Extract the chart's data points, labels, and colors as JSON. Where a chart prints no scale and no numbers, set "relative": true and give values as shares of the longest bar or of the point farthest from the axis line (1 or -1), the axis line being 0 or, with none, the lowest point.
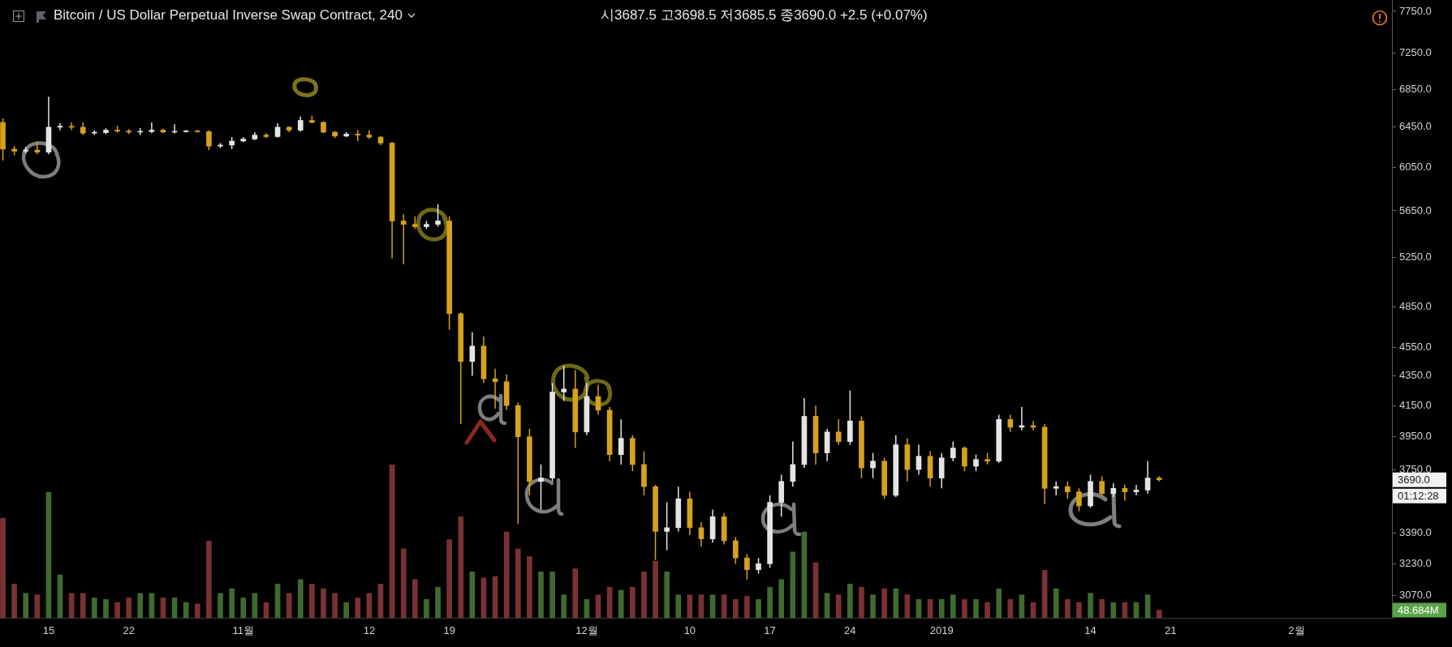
{
  "chart_data": [
    {
      "type": "candlestick",
      "title": "Bitcoin / US Dollar Perpetual Inverse Swap Contract, 240",
      "subtitle": "시3687.5 고3698.5 저3685.5 종3690.0 +2.5 (+0.07%)",
      "x": [
        "2018-10-11",
        "2018-10-12",
        "2018-10-13",
        "2018-10-14",
        "2018-10-15",
        "2018-10-16",
        "2018-10-17",
        "2018-10-18",
        "2018-10-19",
        "2018-10-20",
        "2018-10-21",
        "2018-10-22",
        "2018-10-23",
        "2018-10-24",
        "2018-10-25",
        "2018-10-26",
        "2018-10-27",
        "2018-10-28",
        "2018-10-29",
        "2018-10-30",
        "2018-10-31",
        "2018-11-01",
        "2018-11-02",
        "2018-11-03",
        "2018-11-04",
        "2018-11-05",
        "2018-11-06",
        "2018-11-07",
        "2018-11-08",
        "2018-11-09",
        "2018-11-10",
        "2018-11-11",
        "2018-11-12",
        "2018-11-13",
        "2018-11-14",
        "2018-11-15",
        "2018-11-16",
        "2018-11-17",
        "2018-11-18",
        "2018-11-19",
        "2018-11-20",
        "2018-11-21",
        "2018-11-22",
        "2018-11-23",
        "2018-11-24",
        "2018-11-25",
        "2018-11-26",
        "2018-11-27",
        "2018-11-28",
        "2018-11-29",
        "2018-11-30",
        "2018-12-01",
        "2018-12-02",
        "2018-12-03",
        "2018-12-04",
        "2018-12-05",
        "2018-12-06",
        "2018-12-07",
        "2018-12-08",
        "2018-12-09",
        "2018-12-10",
        "2018-12-11",
        "2018-12-12",
        "2018-12-13",
        "2018-12-14",
        "2018-12-15",
        "2018-12-16",
        "2018-12-17",
        "2018-12-18",
        "2018-12-19",
        "2018-12-20",
        "2018-12-21",
        "2018-12-22",
        "2018-12-23",
        "2018-12-24",
        "2018-12-25",
        "2018-12-26",
        "2018-12-27",
        "2018-12-28",
        "2018-12-29",
        "2018-12-30",
        "2018-12-31",
        "2019-01-01",
        "2019-01-02",
        "2019-01-03",
        "2019-01-04",
        "2019-01-05",
        "2019-01-06",
        "2019-01-07",
        "2019-01-08",
        "2019-01-09",
        "2019-01-10",
        "2019-01-11",
        "2019-01-12",
        "2019-01-13",
        "2019-01-14",
        "2019-01-15",
        "2019-01-16",
        "2019-01-17",
        "2019-01-18",
        "2019-01-19",
        "2019-01-20"
      ],
      "ohlc": [
        [
          6500,
          6540,
          6120,
          6230
        ],
        [
          6230,
          6260,
          6170,
          6210
        ],
        [
          6210,
          6250,
          6190,
          6220
        ],
        [
          6220,
          6310,
          6180,
          6200
        ],
        [
          6200,
          6770,
          6180,
          6450
        ],
        [
          6450,
          6490,
          6420,
          6460
        ],
        [
          6460,
          6500,
          6420,
          6450
        ],
        [
          6450,
          6500,
          6370,
          6390
        ],
        [
          6390,
          6420,
          6370,
          6395
        ],
        [
          6395,
          6440,
          6380,
          6420
        ],
        [
          6420,
          6465,
          6395,
          6410
        ],
        [
          6410,
          6430,
          6380,
          6400
        ],
        [
          6400,
          6440,
          6370,
          6405
        ],
        [
          6405,
          6500,
          6390,
          6420
        ],
        [
          6420,
          6435,
          6390,
          6400
        ],
        [
          6400,
          6480,
          6385,
          6405
        ],
        [
          6405,
          6420,
          6395,
          6410
        ],
        [
          6410,
          6420,
          6395,
          6405
        ],
        [
          6405,
          6420,
          6220,
          6260
        ],
        [
          6260,
          6290,
          6240,
          6270
        ],
        [
          6270,
          6350,
          6230,
          6310
        ],
        [
          6310,
          6350,
          6300,
          6330
        ],
        [
          6330,
          6400,
          6320,
          6370
        ],
        [
          6370,
          6390,
          6340,
          6355
        ],
        [
          6355,
          6490,
          6345,
          6450
        ],
        [
          6450,
          6460,
          6400,
          6420
        ],
        [
          6420,
          6560,
          6405,
          6520
        ],
        [
          6520,
          6570,
          6490,
          6500
        ],
        [
          6500,
          6510,
          6390,
          6400
        ],
        [
          6400,
          6410,
          6340,
          6360
        ],
        [
          6360,
          6400,
          6350,
          6380
        ],
        [
          6380,
          6420,
          6310,
          6370
        ],
        [
          6370,
          6420,
          6330,
          6350
        ],
        [
          6350,
          6360,
          6270,
          6290
        ],
        [
          6290,
          6300,
          5240,
          5560
        ],
        [
          5560,
          5620,
          5190,
          5530
        ],
        [
          5530,
          5600,
          5490,
          5510
        ],
        [
          5510,
          5560,
          5490,
          5530
        ],
        [
          5530,
          5710,
          5510,
          5560
        ],
        [
          5560,
          5600,
          4680,
          4800
        ],
        [
          4800,
          4810,
          4030,
          4450
        ],
        [
          4450,
          4660,
          4350,
          4560
        ],
        [
          4560,
          4630,
          4300,
          4330
        ],
        [
          4330,
          4400,
          4130,
          4310
        ],
        [
          4310,
          4360,
          4120,
          4150
        ],
        [
          4150,
          4170,
          3440,
          3950
        ],
        [
          3950,
          4000,
          3600,
          3680
        ],
        [
          3680,
          3780,
          3520,
          3700
        ],
        [
          3700,
          4300,
          3680,
          4240
        ],
        [
          4240,
          4420,
          4180,
          4260
        ],
        [
          4260,
          4390,
          3880,
          3980
        ],
        [
          3980,
          4300,
          3960,
          4210
        ],
        [
          4210,
          4290,
          4090,
          4120
        ],
        [
          4120,
          4140,
          3800,
          3840
        ],
        [
          3840,
          4060,
          3780,
          3940
        ],
        [
          3940,
          3960,
          3740,
          3780
        ],
        [
          3780,
          3860,
          3600,
          3650
        ],
        [
          3650,
          3660,
          3250,
          3400
        ],
        [
          3400,
          3560,
          3300,
          3420
        ],
        [
          3420,
          3650,
          3400,
          3580
        ],
        [
          3580,
          3620,
          3380,
          3420
        ],
        [
          3420,
          3450,
          3320,
          3360
        ],
        [
          3360,
          3520,
          3340,
          3480
        ],
        [
          3480,
          3500,
          3330,
          3350
        ],
        [
          3350,
          3370,
          3230,
          3260
        ],
        [
          3260,
          3280,
          3150,
          3200
        ],
        [
          3200,
          3260,
          3180,
          3230
        ],
        [
          3230,
          3600,
          3210,
          3560
        ],
        [
          3560,
          3720,
          3480,
          3680
        ],
        [
          3680,
          3920,
          3650,
          3780
        ],
        [
          3780,
          4200,
          3760,
          4080
        ],
        [
          4080,
          4150,
          3780,
          3850
        ],
        [
          3850,
          4000,
          3800,
          3980
        ],
        [
          3980,
          4060,
          3900,
          3920
        ],
        [
          3920,
          4250,
          3900,
          4050
        ],
        [
          4050,
          4080,
          3700,
          3760
        ],
        [
          3760,
          3850,
          3700,
          3800
        ],
        [
          3800,
          3820,
          3580,
          3600
        ],
        [
          3600,
          3960,
          3590,
          3900
        ],
        [
          3900,
          3940,
          3680,
          3750
        ],
        [
          3750,
          3900,
          3720,
          3830
        ],
        [
          3830,
          3860,
          3650,
          3700
        ],
        [
          3700,
          3850,
          3640,
          3820
        ],
        [
          3820,
          3920,
          3800,
          3880
        ],
        [
          3880,
          3890,
          3740,
          3770
        ],
        [
          3770,
          3840,
          3740,
          3810
        ],
        [
          3810,
          3850,
          3780,
          3800
        ],
        [
          3800,
          4090,
          3790,
          4060
        ],
        [
          4060,
          4090,
          3980,
          4010
        ],
        [
          4010,
          4140,
          3990,
          4020
        ],
        [
          4020,
          4050,
          3990,
          4010
        ],
        [
          4010,
          4030,
          3550,
          3640
        ],
        [
          3640,
          3680,
          3600,
          3650
        ],
        [
          3650,
          3680,
          3580,
          3620
        ],
        [
          3620,
          3640,
          3510,
          3540
        ],
        [
          3540,
          3720,
          3530,
          3680
        ],
        [
          3680,
          3710,
          3600,
          3610
        ],
        [
          3610,
          3670,
          3590,
          3640
        ],
        [
          3640,
          3660,
          3570,
          3620
        ],
        [
          3620,
          3660,
          3600,
          3630
        ],
        [
          3630,
          3800,
          3610,
          3700
        ],
        [
          3700,
          3710,
          3680,
          3690
        ]
      ],
      "colors": [
        "#d6a11e",
        "#d6a11e",
        "#e4e4e4",
        "#d6a11e",
        "#e4e4e4",
        "#e4e4e4",
        "#d6a11e",
        "#d6a11e",
        "#e4e4e4",
        "#e4e4e4",
        "#d6a11e",
        "#d6a11e",
        "#e4e4e4",
        "#e4e4e4",
        "#d6a11e",
        "#e4e4e4",
        "#e4e4e4",
        "#d6a11e",
        "#d6a11e",
        "#e4e4e4",
        "#e4e4e4",
        "#e4e4e4",
        "#e4e4e4",
        "#d6a11e",
        "#e4e4e4",
        "#d6a11e",
        "#e4e4e4",
        "#d6a11e",
        "#d6a11e",
        "#d6a11e",
        "#e4e4e4",
        "#d6a11e",
        "#d6a11e",
        "#d6a11e",
        "#d6a11e",
        "#d6a11e",
        "#d6a11e",
        "#e4e4e4",
        "#e4e4e4",
        "#d6a11e",
        "#d6a11e",
        "#e4e4e4",
        "#d6a11e",
        "#d6a11e",
        "#d6a11e",
        "#d6a11e",
        "#d6a11e",
        "#e4e4e4",
        "#e4e4e4",
        "#e4e4e4",
        "#d6a11e",
        "#e4e4e4",
        "#d6a11e",
        "#d6a11e",
        "#e4e4e4",
        "#d6a11e",
        "#d6a11e",
        "#d6a11e",
        "#e4e4e4",
        "#e4e4e4",
        "#d6a11e",
        "#d6a11e",
        "#e4e4e4",
        "#d6a11e",
        "#d6a11e",
        "#d6a11e",
        "#e4e4e4",
        "#e4e4e4",
        "#e4e4e4",
        "#e4e4e4",
        "#e4e4e4",
        "#d6a11e",
        "#e4e4e4",
        "#d6a11e",
        "#e4e4e4",
        "#d6a11e",
        "#e4e4e4",
        "#d6a11e",
        "#e4e4e4",
        "#d6a11e",
        "#e4e4e4",
        "#d6a11e",
        "#e4e4e4",
        "#e4e4e4",
        "#d6a11e",
        "#e4e4e4",
        "#d6a11e",
        "#e4e4e4",
        "#d6a11e",
        "#e4e4e4",
        "#d6a11e",
        "#d6a11e",
        "#e4e4e4",
        "#d6a11e",
        "#d6a11e",
        "#e4e4e4",
        "#d6a11e",
        "#e4e4e4",
        "#d6a11e",
        "#e4e4e4",
        "#e4e4e4",
        "#d6a11e"
      ],
      "xlim": [
        "2018-10-10T18:00",
        "2019-02-09T08:00"
      ],
      "xticks": [
        {
          "value": "2018-10-15",
          "label": "15"
        },
        {
          "value": "2018-10-22",
          "label": "22"
        },
        {
          "value": "2018-11-01",
          "label": "11월"
        },
        {
          "value": "2018-11-12",
          "label": "12"
        },
        {
          "value": "2018-11-19",
          "label": "19"
        },
        {
          "value": "2018-12-01",
          "label": "12월"
        },
        {
          "value": "2018-12-10",
          "label": "10"
        },
        {
          "value": "2018-12-17",
          "label": "17"
        },
        {
          "value": "2018-12-24",
          "label": "24"
        },
        {
          "value": "2019-01-01",
          "label": "2019"
        },
        {
          "value": "2019-01-14",
          "label": "14"
        },
        {
          "value": "2019-01-21",
          "label": "21"
        },
        {
          "value": "2019-02-01",
          "label": "2월"
        }
      ],
      "ylim": [
        2965,
        7890
      ],
      "yticks": [
        {
          "value": 7750,
          "label": "7750.0"
        },
        {
          "value": 7250,
          "label": "7250.0"
        },
        {
          "value": 6850,
          "label": "6850.0"
        },
        {
          "value": 6450,
          "label": "6450.0"
        },
        {
          "value": 6050,
          "label": "6050.0"
        },
        {
          "value": 5650,
          "label": "5650.0"
        },
        {
          "value": 5250,
          "label": "5250.0"
        },
        {
          "value": 4850,
          "label": "4850.0"
        },
        {
          "value": 4550,
          "label": "4550.0"
        },
        {
          "value": 4350,
          "label": "4350.0"
        },
        {
          "value": 4150,
          "label": "4150.0"
        },
        {
          "value": 3950,
          "label": "3950.0"
        },
        {
          "value": 3750,
          "label": "3750.0"
        },
        {
          "value": 3390,
          "label": "3390.0"
        },
        {
          "value": 3230,
          "label": "3230.0"
        },
        {
          "value": 3070,
          "label": "3070.0"
        }
      ],
      "log": true,
      "annotations": [
        "3690.0",
        "01:12:28"
      ]
    },
    {
      "type": "bar",
      "x": [
        "2018-10-11",
        "2018-10-12",
        "2018-10-13",
        "2018-10-14",
        "2018-10-15",
        "2018-10-16",
        "2018-10-17",
        "2018-10-18",
        "2018-10-19",
        "2018-10-20",
        "2018-10-21",
        "2018-10-22",
        "2018-10-23",
        "2018-10-24",
        "2018-10-25",
        "2018-10-26",
        "2018-10-27",
        "2018-10-28",
        "2018-10-29",
        "2018-10-30",
        "2018-10-31",
        "2018-11-01",
        "2018-11-02",
        "2018-11-03",
        "2018-11-04",
        "2018-11-05",
        "2018-11-06",
        "2018-11-07",
        "2018-11-08",
        "2018-11-09",
        "2018-11-10",
        "2018-11-11",
        "2018-11-12",
        "2018-11-13",
        "2018-11-14",
        "2018-11-15",
        "2018-11-16",
        "2018-11-17",
        "2018-11-18",
        "2018-11-19",
        "2018-11-20",
        "2018-11-21",
        "2018-11-22",
        "2018-11-23",
        "2018-11-24",
        "2018-11-25",
        "2018-11-26",
        "2018-11-27",
        "2018-11-28",
        "2018-11-29",
        "2018-11-30",
        "2018-12-01",
        "2018-12-02",
        "2018-12-03",
        "2018-12-04",
        "2018-12-05",
        "2018-12-06",
        "2018-12-07",
        "2018-12-08",
        "2018-12-09",
        "2018-12-10",
        "2018-12-11",
        "2018-12-12",
        "2018-12-13",
        "2018-12-14",
        "2018-12-15",
        "2018-12-16",
        "2018-12-17",
        "2018-12-18",
        "2018-12-19",
        "2018-12-20",
        "2018-12-21",
        "2018-12-22",
        "2018-12-23",
        "2018-12-24",
        "2018-12-25",
        "2018-12-26",
        "2018-12-27",
        "2018-12-28",
        "2018-12-29",
        "2018-12-30",
        "2018-12-31",
        "2019-01-01",
        "2019-01-02",
        "2019-01-03",
        "2019-01-04",
        "2019-01-05",
        "2019-01-06",
        "2019-01-07",
        "2019-01-08",
        "2019-01-09",
        "2019-01-10",
        "2019-01-11",
        "2019-01-12",
        "2019-01-13",
        "2019-01-14",
        "2019-01-15",
        "2019-01-16",
        "2019-01-17",
        "2019-01-18",
        "2019-01-19",
        "2019-01-20"
      ],
      "values": [
        0.65,
        0.22,
        0.16,
        0.15,
        0.82,
        0.28,
        0.16,
        0.16,
        0.13,
        0.12,
        0.1,
        0.13,
        0.16,
        0.16,
        0.13,
        0.13,
        0.1,
        0.09,
        0.5,
        0.16,
        0.19,
        0.13,
        0.16,
        0.1,
        0.22,
        0.16,
        0.25,
        0.22,
        0.19,
        0.16,
        0.1,
        0.13,
        0.16,
        0.22,
        1,
        0.45,
        0.25,
        0.12,
        0.2,
        0.51,
        0.66,
        0.3,
        0.26,
        0.27,
        0.56,
        0.45,
        0.4,
        0.3,
        0.3,
        0.15,
        0.32,
        0.12,
        0.15,
        0.2,
        0.18,
        0.2,
        0.3,
        0.37,
        0.3,
        0.15,
        0.15,
        0.15,
        0.15,
        0.15,
        0.12,
        0.14,
        0.12,
        0.2,
        0.25,
        0.43,
        0.56,
        0.36,
        0.16,
        0.15,
        0.22,
        0.2,
        0.15,
        0.19,
        0.19,
        0.15,
        0.12,
        0.12,
        0.12,
        0.15,
        0.12,
        0.12,
        0.1,
        0.19,
        0.12,
        0.15,
        0.1,
        0.31,
        0.19,
        0.12,
        0.1,
        0.16,
        0.12,
        0.1,
        0.1,
        0.1,
        0.15,
        0.05
      ],
      "colors": [
        "#7a3135",
        "#7a3135",
        "#3f6a30",
        "#7a3135",
        "#3f6a30",
        "#3f6a30",
        "#7a3135",
        "#7a3135",
        "#3f6a30",
        "#3f6a30",
        "#7a3135",
        "#7a3135",
        "#3f6a30",
        "#3f6a30",
        "#7a3135",
        "#3f6a30",
        "#3f6a30",
        "#7a3135",
        "#7a3135",
        "#3f6a30",
        "#3f6a30",
        "#3f6a30",
        "#3f6a30",
        "#7a3135",
        "#3f6a30",
        "#7a3135",
        "#3f6a30",
        "#7a3135",
        "#7a3135",
        "#7a3135",
        "#3f6a30",
        "#7a3135",
        "#7a3135",
        "#7a3135",
        "#7a3135",
        "#7a3135",
        "#7a3135",
        "#3f6a30",
        "#3f6a30",
        "#7a3135",
        "#7a3135",
        "#3f6a30",
        "#7a3135",
        "#7a3135",
        "#7a3135",
        "#7a3135",
        "#7a3135",
        "#3f6a30",
        "#3f6a30",
        "#3f6a30",
        "#7a3135",
        "#3f6a30",
        "#7a3135",
        "#7a3135",
        "#3f6a30",
        "#7a3135",
        "#7a3135",
        "#7a3135",
        "#3f6a30",
        "#3f6a30",
        "#7a3135",
        "#7a3135",
        "#3f6a30",
        "#7a3135",
        "#7a3135",
        "#7a3135",
        "#3f6a30",
        "#3f6a30",
        "#3f6a30",
        "#3f6a30",
        "#3f6a30",
        "#7a3135",
        "#3f6a30",
        "#7a3135",
        "#3f6a30",
        "#7a3135",
        "#3f6a30",
        "#7a3135",
        "#3f6a30",
        "#7a3135",
        "#3f6a30",
        "#7a3135",
        "#3f6a30",
        "#3f6a30",
        "#7a3135",
        "#3f6a30",
        "#7a3135",
        "#3f6a30",
        "#7a3135",
        "#3f6a30",
        "#7a3135",
        "#7a3135",
        "#3f6a30",
        "#7a3135",
        "#7a3135",
        "#3f6a30",
        "#7a3135",
        "#3f6a30",
        "#7a3135",
        "#3f6a30",
        "#3f6a30",
        "#7a3135"
      ],
      "relative": true,
      "xlim": [
        "2018-10-10T18:00",
        "2019-02-09T08:00"
      ],
      "tick_labels": false,
      "annotations": [
        "48.684M"
      ]
    }
  ]
}
